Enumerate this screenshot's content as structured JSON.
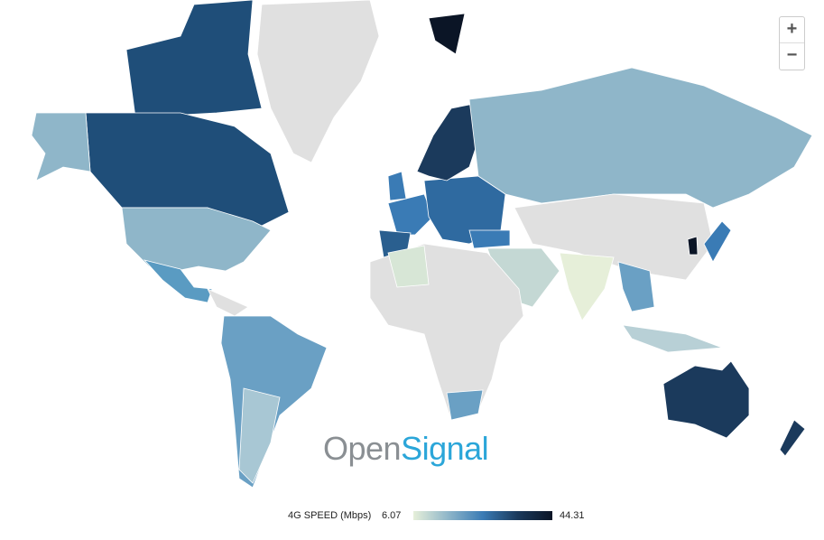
{
  "zoom_controls": {
    "zoom_in": "+",
    "zoom_out": "−"
  },
  "watermark": {
    "part1": "Open",
    "part2": "Signal"
  },
  "legend": {
    "title": "4G SPEED (Mbps)",
    "min": 6.07,
    "max": 44.31
  }
}
